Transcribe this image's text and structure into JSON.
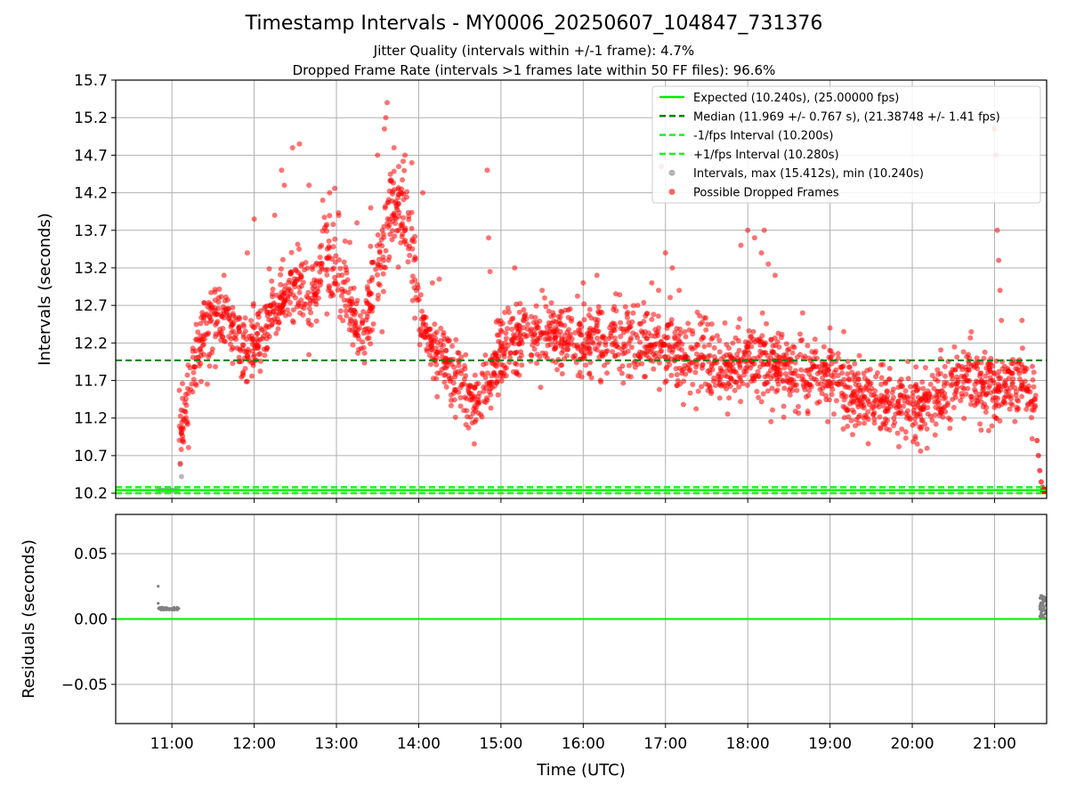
{
  "chart_data": [
    {
      "type": "scatter",
      "title": "Timestamp Intervals - MY0006_20250607_104847_731376",
      "subtitle_lines": [
        "Jitter Quality (intervals within +/-1 frame): 4.7%",
        "Dropped Frame Rate (intervals >1 frames late within 50 FF files): 96.6%"
      ],
      "ylabel": "Intervals (seconds)",
      "ylim": [
        10.13,
        15.7
      ],
      "yticks": [
        "10.2",
        "10.7",
        "11.2",
        "11.7",
        "12.2",
        "12.7",
        "13.2",
        "13.7",
        "14.2",
        "14.7",
        "15.2",
        "15.7"
      ],
      "xlim": [
        "10:19",
        "21:38"
      ],
      "xticks": [
        "11:00",
        "12:00",
        "13:00",
        "14:00",
        "15:00",
        "16:00",
        "17:00",
        "18:00",
        "19:00",
        "20:00",
        "21:00"
      ],
      "grid": true,
      "legend_position": "top-right",
      "reference_lines": [
        {
          "name": "Expected (10.240s), (25.00000 fps)",
          "y": 10.24,
          "color": "#00ee00",
          "style": "solid"
        },
        {
          "name": "Median (11.969 +/- 0.767 s), (21.38748 +/- 1.41 fps)",
          "y": 11.969,
          "color": "#007f00",
          "style": "dashed"
        },
        {
          "name": "-1/fps Interval (10.200s)",
          "y": 10.2,
          "color": "#22ee22",
          "style": "dashed"
        },
        {
          "name": "+1/fps Interval (10.280s)",
          "y": 10.28,
          "color": "#22ee22",
          "style": "dashed"
        }
      ],
      "series": [
        {
          "name": "Intervals, max (15.412s), min (10.240s)",
          "color": "#808080",
          "points": [
            [
              "10:50",
              10.24
            ],
            [
              "10:52",
              10.24
            ],
            [
              "10:54",
              10.24
            ],
            [
              "10:56",
              10.24
            ],
            [
              "10:58",
              10.24
            ],
            [
              "11:00",
              10.24
            ],
            [
              "11:02",
              10.24
            ],
            [
              "11:04",
              10.24
            ],
            [
              "11:06",
              10.58
            ],
            [
              "11:07",
              10.42
            ],
            [
              "11:08",
              11.3
            ]
          ]
        },
        {
          "name": "Possible Dropped Frames",
          "color": "#ff0000",
          "trend": [
            [
              "11:05",
              10.9
            ],
            [
              "11:10",
              11.4
            ],
            [
              "11:15",
              11.9
            ],
            [
              "11:25",
              12.4
            ],
            [
              "11:35",
              12.6
            ],
            [
              "11:45",
              12.3
            ],
            [
              "11:55",
              12.1
            ],
            [
              "12:05",
              12.3
            ],
            [
              "12:15",
              12.6
            ],
            [
              "12:25",
              12.9
            ],
            [
              "12:35",
              13.0
            ],
            [
              "12:40",
              12.6
            ],
            [
              "12:45",
              12.9
            ],
            [
              "12:50",
              13.4
            ],
            [
              "13:00",
              13.3
            ],
            [
              "13:10",
              12.7
            ],
            [
              "13:20",
              12.3
            ],
            [
              "13:30",
              13.1
            ],
            [
              "13:40",
              13.9
            ],
            [
              "13:50",
              14.0
            ],
            [
              "14:00",
              12.5
            ],
            [
              "14:10",
              12.1
            ],
            [
              "14:20",
              11.9
            ],
            [
              "14:30",
              11.7
            ],
            [
              "14:40",
              11.4
            ],
            [
              "14:50",
              11.6
            ],
            [
              "15:00",
              12.1
            ],
            [
              "15:20",
              12.3
            ],
            [
              "15:40",
              12.3
            ],
            [
              "16:00",
              12.2
            ],
            [
              "16:20",
              12.3
            ],
            [
              "16:40",
              12.2
            ],
            [
              "17:00",
              12.1
            ],
            [
              "17:20",
              12.0
            ],
            [
              "17:40",
              11.9
            ],
            [
              "18:00",
              12.0
            ],
            [
              "18:20",
              11.9
            ],
            [
              "18:40",
              11.8
            ],
            [
              "19:00",
              11.7
            ],
            [
              "19:20",
              11.5
            ],
            [
              "19:40",
              11.4
            ],
            [
              "20:00",
              11.3
            ],
            [
              "20:20",
              11.5
            ],
            [
              "20:40",
              11.7
            ],
            [
              "21:00",
              11.6
            ],
            [
              "21:20",
              11.7
            ],
            [
              "21:30",
              11.3
            ]
          ],
          "outliers": [
            [
              "11:38",
              13.1
            ],
            [
              "11:55",
              13.4
            ],
            [
              "12:00",
              13.85
            ],
            [
              "12:15",
              13.9
            ],
            [
              "12:20",
              14.5
            ],
            [
              "12:22",
              14.3
            ],
            [
              "12:28",
              14.8
            ],
            [
              "12:33",
              14.85
            ],
            [
              "12:40",
              14.3
            ],
            [
              "12:50",
              14.1
            ],
            [
              "12:55",
              14.2
            ],
            [
              "13:15",
              13.8
            ],
            [
              "13:25",
              14.0
            ],
            [
              "13:30",
              14.7
            ],
            [
              "13:35",
              15.05
            ],
            [
              "13:36",
              15.2
            ],
            [
              "13:37",
              15.4
            ],
            [
              "13:42",
              14.8
            ],
            [
              "13:50",
              14.7
            ],
            [
              "13:55",
              14.6
            ],
            [
              "14:03",
              14.2
            ],
            [
              "14:10",
              13.0
            ],
            [
              "14:15",
              13.05
            ],
            [
              "14:50",
              14.5
            ],
            [
              "14:51",
              13.6
            ],
            [
              "14:52",
              13.15
            ],
            [
              "15:10",
              13.2
            ],
            [
              "15:30",
              12.9
            ],
            [
              "16:00",
              13.0
            ],
            [
              "16:10",
              13.1
            ],
            [
              "16:50",
              13.0
            ],
            [
              "16:55",
              12.9
            ],
            [
              "16:57",
              14.55
            ],
            [
              "17:00",
              13.4
            ],
            [
              "17:05",
              13.2
            ],
            [
              "17:10",
              12.9
            ],
            [
              "17:55",
              13.5
            ],
            [
              "18:00",
              13.7
            ],
            [
              "18:05",
              13.6
            ],
            [
              "18:10",
              13.4
            ],
            [
              "18:12",
              13.7
            ],
            [
              "18:15",
              13.25
            ],
            [
              "18:20",
              13.1
            ],
            [
              "18:40",
              12.6
            ],
            [
              "19:00",
              12.4
            ],
            [
              "19:10",
              12.35
            ],
            [
              "21:00",
              15.05
            ],
            [
              "21:01",
              14.7
            ],
            [
              "21:02",
              13.7
            ],
            [
              "21:03",
              13.3
            ],
            [
              "21:04",
              12.9
            ],
            [
              "21:05",
              12.5
            ],
            [
              "21:20",
              12.5
            ],
            [
              "21:30",
              11.5
            ]
          ],
          "tail": [
            [
              "21:31",
              10.9
            ],
            [
              "21:32",
              10.7
            ],
            [
              "21:33",
              10.5
            ],
            [
              "21:34",
              10.35
            ],
            [
              "21:35",
              10.28
            ],
            [
              "21:36",
              10.24
            ],
            [
              "21:38",
              10.24
            ]
          ]
        }
      ]
    },
    {
      "type": "scatter",
      "ylabel": "Residuals (seconds)",
      "ylim": [
        -0.08,
        0.08
      ],
      "yticks": [
        "0.05",
        "0.00",
        "−0.05"
      ],
      "xlim": [
        "10:19",
        "21:38"
      ],
      "xticks": [
        "11:00",
        "12:00",
        "13:00",
        "14:00",
        "15:00",
        "16:00",
        "17:00",
        "18:00",
        "19:00",
        "20:00",
        "21:00"
      ],
      "xlabel": "Time (UTC)",
      "grid": true,
      "reference_lines": [
        {
          "y": 0.0,
          "color": "#00ee00",
          "style": "solid"
        }
      ],
      "series": [
        {
          "color": "#808080",
          "points": [
            [
              "10:50",
              0.025
            ],
            [
              "10:50",
              0.012
            ],
            [
              "10:51",
              0.008
            ],
            [
              "10:52",
              0.007
            ],
            [
              "10:53",
              0.009
            ],
            [
              "10:54",
              0.007
            ],
            [
              "10:55",
              0.008
            ],
            [
              "10:56",
              0.007
            ],
            [
              "10:57",
              0.008
            ],
            [
              "10:58",
              0.007
            ],
            [
              "10:59",
              0.008
            ],
            [
              "11:00",
              0.007
            ],
            [
              "11:01",
              0.008
            ],
            [
              "11:02",
              0.007
            ],
            [
              "11:03",
              0.008
            ],
            [
              "11:04",
              0.007
            ],
            [
              "11:05",
              0.008
            ],
            [
              "21:33",
              0.002
            ],
            [
              "21:33",
              0.01
            ],
            [
              "21:34",
              0.016
            ],
            [
              "21:34",
              0.005
            ],
            [
              "21:35",
              0.012
            ],
            [
              "21:35",
              0.002
            ],
            [
              "21:36",
              0.017
            ],
            [
              "21:36",
              0.008
            ],
            [
              "21:37",
              0.014
            ],
            [
              "21:37",
              0.004
            ],
            [
              "21:38",
              0.011
            ],
            [
              "21:38",
              0.016
            ]
          ]
        }
      ]
    }
  ]
}
